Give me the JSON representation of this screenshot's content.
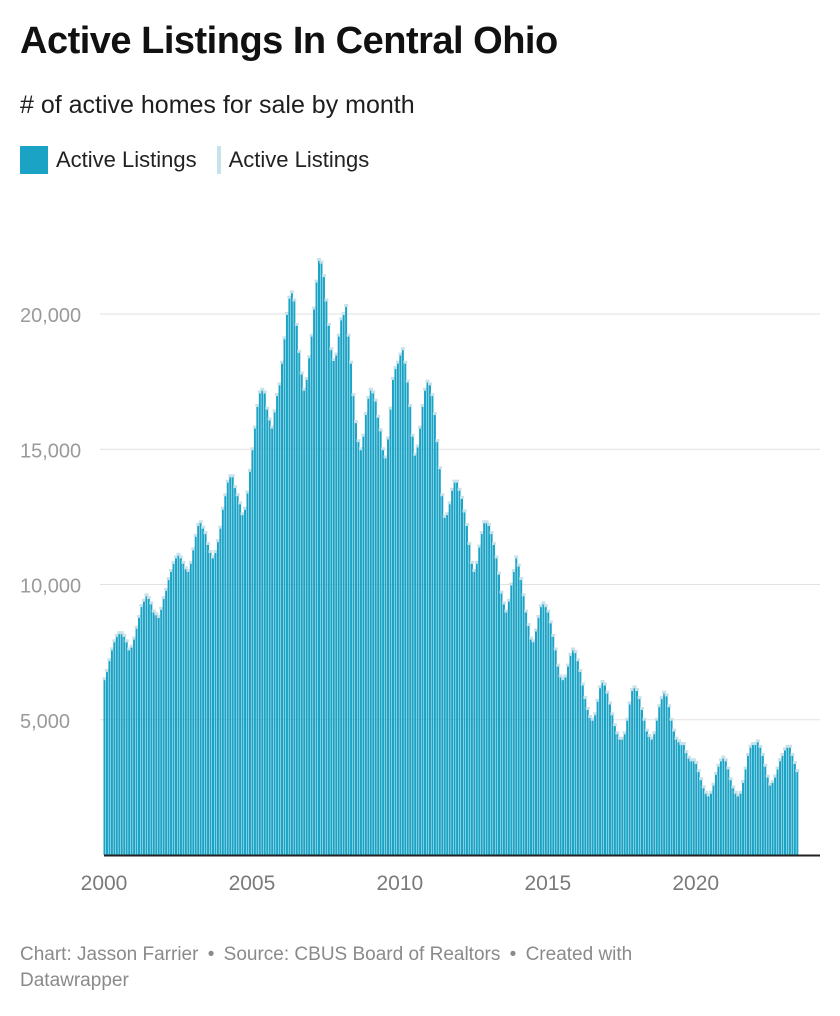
{
  "header": {
    "title": "Active Listings In Central Ohio",
    "subtitle": "# of active homes for sale by month"
  },
  "legend": [
    {
      "label": "Active Listings",
      "color": "#1ba3c6",
      "kind": "fill"
    },
    {
      "label": "Active Listings",
      "color": "#c7e2ea",
      "kind": "line"
    }
  ],
  "footer": {
    "chart_credit": "Chart: Jasson Farrier",
    "source": "Source: CBUS Board of Realtors",
    "created_with": "Created with Datawrapper",
    "separator": "•"
  },
  "chart_data": {
    "type": "bar",
    "title": "Active Listings In Central Ohio",
    "subtitle": "# of active homes for sale by month",
    "xlabel": "",
    "ylabel": "",
    "ylim": [
      0,
      22000
    ],
    "xlim": [
      2000,
      2024.2
    ],
    "y_ticks": [
      5000,
      10000,
      15000,
      20000
    ],
    "y_tick_labels": [
      "5,000",
      "10,000",
      "15,000",
      "20,000"
    ],
    "x_ticks": [
      2000,
      2005,
      2010,
      2015,
      2020
    ],
    "x_tick_labels": [
      "2000",
      "2005",
      "2010",
      "2015",
      "2020"
    ],
    "grid": true,
    "bar_color": "#1ba3c6",
    "cap_color": "#c7e2ea",
    "series": [
      {
        "name": "Active Listings",
        "start": "2000-01",
        "frequency": "monthly",
        "values": [
          6500,
          6800,
          7200,
          7600,
          7900,
          8100,
          8200,
          8200,
          8100,
          7900,
          7600,
          7700,
          8000,
          8400,
          8800,
          9200,
          9400,
          9600,
          9500,
          9300,
          9000,
          8900,
          8800,
          9100,
          9500,
          9800,
          10200,
          10500,
          10800,
          11000,
          11100,
          11000,
          10800,
          10600,
          10500,
          10800,
          11300,
          11800,
          12200,
          12300,
          12100,
          11900,
          11500,
          11200,
          11000,
          11200,
          11600,
          12100,
          12800,
          13300,
          13800,
          14000,
          14000,
          13600,
          13300,
          13000,
          12600,
          12800,
          13400,
          14200,
          15000,
          15800,
          16600,
          17100,
          17200,
          17100,
          16500,
          16100,
          15800,
          16400,
          17000,
          17400,
          18200,
          19100,
          20000,
          20600,
          20800,
          20500,
          19600,
          18600,
          17800,
          17200,
          17600,
          18400,
          19200,
          20200,
          21200,
          22000,
          21900,
          21400,
          20500,
          19600,
          18700,
          18300,
          18500,
          19200,
          19800,
          20000,
          20300,
          19200,
          18200,
          17000,
          16000,
          15300,
          15000,
          15500,
          16300,
          16900,
          17200,
          17100,
          16800,
          16200,
          15700,
          15000,
          14700,
          15400,
          16500,
          17600,
          18000,
          18200,
          18500,
          18700,
          18200,
          17500,
          16600,
          15500,
          14800,
          15100,
          15800,
          16600,
          17200,
          17500,
          17400,
          17000,
          16300,
          15300,
          14300,
          13300,
          12500,
          12600,
          13000,
          13500,
          13800,
          13800,
          13500,
          13200,
          12700,
          12200,
          11500,
          10800,
          10500,
          10800,
          11400,
          11900,
          12300,
          12300,
          12200,
          11900,
          11500,
          11000,
          10400,
          9700,
          9300,
          9000,
          9400,
          10000,
          10500,
          11000,
          10700,
          10200,
          9600,
          9000,
          8500,
          8000,
          7900,
          8300,
          8800,
          9200,
          9300,
          9200,
          9000,
          8600,
          8100,
          7600,
          7000,
          6600,
          6500,
          6600,
          7000,
          7400,
          7600,
          7500,
          7200,
          6800,
          6300,
          5800,
          5400,
          5100,
          5000,
          5200,
          5700,
          6200,
          6400,
          6300,
          6000,
          5600,
          5200,
          4800,
          4500,
          4300,
          4300,
          4500,
          5000,
          5600,
          6100,
          6200,
          6100,
          5800,
          5400,
          5000,
          4600,
          4400,
          4300,
          4500,
          5000,
          5500,
          5800,
          6000,
          5900,
          5500,
          5000,
          4600,
          4300,
          4200,
          4100,
          4100,
          3800,
          3600,
          3500,
          3500,
          3400,
          3100,
          2800,
          2500,
          2300,
          2200,
          2300,
          2600,
          3000,
          3300,
          3500,
          3600,
          3500,
          3200,
          2800,
          2500,
          2300,
          2200,
          2300,
          2700,
          3200,
          3700,
          4000,
          4100,
          4100,
          4200,
          4000,
          3700,
          3300,
          2900,
          2600,
          2700,
          2900,
          3200,
          3500,
          3700,
          3900,
          4000,
          4000,
          3700,
          3400,
          3100
        ]
      }
    ]
  }
}
